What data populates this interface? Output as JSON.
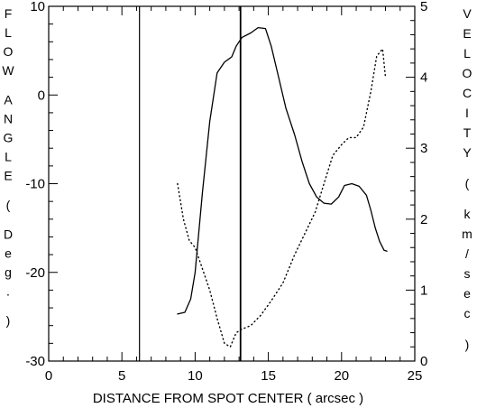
{
  "chart_data": {
    "type": "line",
    "xlabel": "DISTANCE FROM SPOT CENTER ( arcsec )",
    "ylabel_left": "FLOW ANGLE ( Deg. )",
    "ylabel_right": "VELOCITY ( km/sec )",
    "xlim": [
      0,
      25
    ],
    "ylim_left": [
      -30,
      10
    ],
    "ylim_right": [
      0,
      5
    ],
    "x_ticks": [
      0,
      5,
      10,
      15,
      20,
      25
    ],
    "y_ticks_left": [
      -30,
      -20,
      -10,
      0,
      10
    ],
    "y_ticks_right": [
      0,
      1,
      2,
      3,
      4,
      5
    ],
    "grid": false,
    "vertical_lines": [
      6.2,
      13.1
    ],
    "series": [
      {
        "style": "solid",
        "axis": "left",
        "x": [
          8.8,
          9.3,
          9.7,
          10.0,
          10.5,
          11.0,
          11.5,
          12.0,
          12.5,
          12.8,
          13.2,
          13.8,
          14.3,
          14.8,
          15.2,
          15.7,
          16.2,
          16.8,
          17.3,
          17.8,
          18.3,
          18.8,
          19.3,
          19.8,
          20.2,
          20.7,
          21.2,
          21.7,
          22.0,
          22.3,
          22.6,
          22.9,
          23.1
        ],
        "y": [
          -24.7,
          -24.5,
          -23.0,
          -20.0,
          -11.0,
          -3.0,
          2.5,
          3.7,
          4.3,
          5.5,
          6.5,
          7.0,
          7.6,
          7.5,
          5.5,
          2.0,
          -1.5,
          -4.5,
          -7.5,
          -10.0,
          -11.5,
          -12.2,
          -12.3,
          -11.5,
          -10.2,
          -10.0,
          -10.3,
          -11.3,
          -13.0,
          -15.0,
          -16.5,
          -17.5,
          -17.6
        ]
      },
      {
        "style": "dotted",
        "axis": "right",
        "x": [
          8.8,
          9.2,
          9.6,
          10.0,
          10.5,
          11.0,
          11.5,
          12.0,
          12.4,
          12.8,
          13.2,
          13.8,
          14.5,
          15.2,
          16.0,
          16.8,
          17.5,
          18.2,
          18.8,
          19.4,
          20.0,
          20.5,
          21.0,
          21.5,
          22.0,
          22.4,
          22.8,
          23.0
        ],
        "y": [
          2.5,
          2.0,
          1.7,
          1.6,
          1.3,
          1.0,
          0.6,
          0.25,
          0.2,
          0.4,
          0.45,
          0.5,
          0.65,
          0.85,
          1.1,
          1.5,
          1.8,
          2.1,
          2.5,
          2.9,
          3.05,
          3.15,
          3.15,
          3.3,
          3.8,
          4.3,
          4.4,
          4.0
        ]
      }
    ]
  }
}
